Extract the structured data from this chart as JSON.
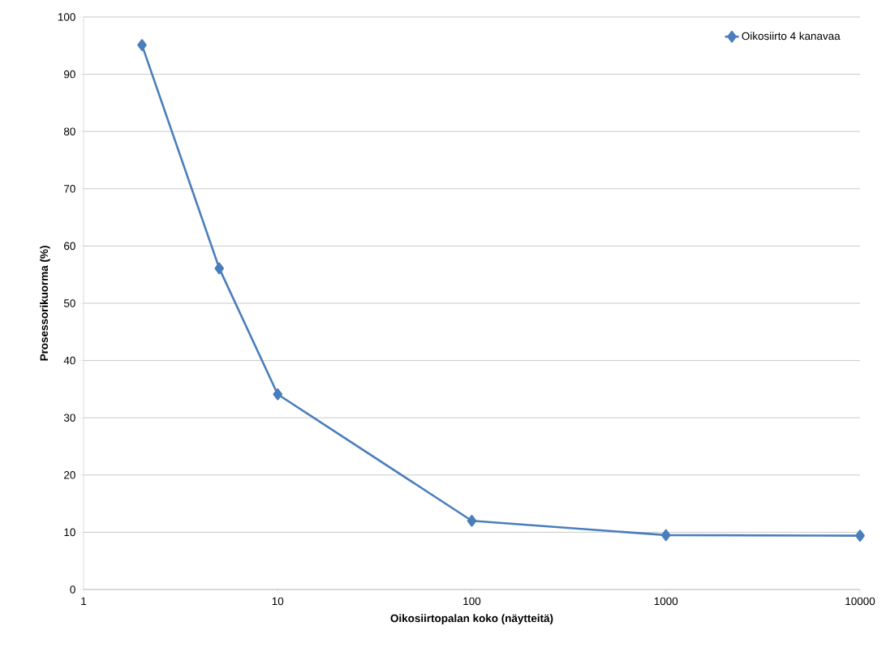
{
  "chart_data": {
    "type": "line",
    "xlabel": "Oikosiirtopalan  koko (näytteitä)",
    "ylabel": "Prosessorikuorma  (%)",
    "x": [
      2,
      5,
      10,
      100,
      1000,
      10000
    ],
    "series": [
      {
        "name": "Oikosiirto 4 kanavaa",
        "color": "#4a7ebb",
        "values": [
          95.1,
          56.1,
          34.1,
          12.0,
          9.5,
          9.4
        ]
      }
    ],
    "log": "x",
    "xlim": [
      1,
      10000
    ],
    "xticks": [
      1,
      10,
      100,
      1000,
      10000
    ],
    "ylim": [
      0,
      100
    ],
    "yticks": [
      0,
      10,
      20,
      30,
      40,
      50,
      60,
      70,
      80,
      90,
      100
    ],
    "grid": "y",
    "legend": "top right",
    "marker": "diamond",
    "line_style": "solid"
  }
}
